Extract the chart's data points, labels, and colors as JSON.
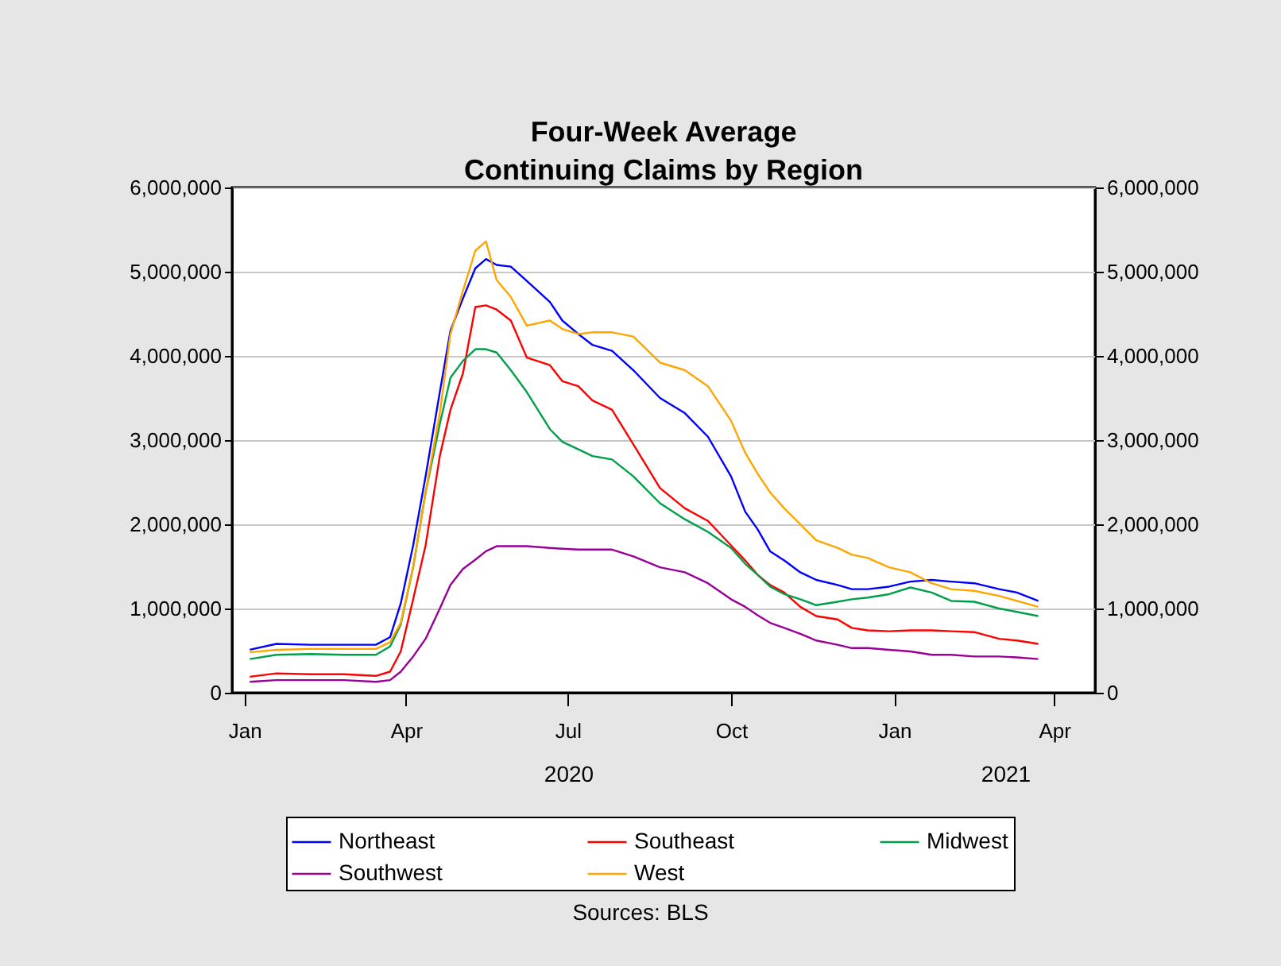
{
  "chart_data": {
    "type": "line",
    "title": "Four-Week Average\nContinuing Claims by Region",
    "annotations": [
      "2020",
      "2021",
      "Sources: BLS"
    ],
    "x": [
      "2020-01-04",
      "2020-01-19",
      "2020-02-07",
      "2020-02-26",
      "2020-03-15",
      "2020-03-23",
      "2020-03-29",
      "2020-04-05",
      "2020-04-12",
      "2020-04-20",
      "2020-04-26",
      "2020-05-03",
      "2020-05-10",
      "2020-05-16",
      "2020-05-22",
      "2020-05-30",
      "2020-06-08",
      "2020-06-21",
      "2020-06-28",
      "2020-07-07",
      "2020-07-15",
      "2020-07-26",
      "2020-08-07",
      "2020-08-22",
      "2020-09-05",
      "2020-09-18",
      "2020-10-01",
      "2020-10-09",
      "2020-10-16",
      "2020-10-23",
      "2020-10-31",
      "2020-11-09",
      "2020-11-18",
      "2020-11-30",
      "2020-12-08",
      "2020-12-17",
      "2020-12-29",
      "2021-01-10",
      "2021-01-22",
      "2021-02-02",
      "2021-02-15",
      "2021-03-01",
      "2021-03-11",
      "2021-03-23"
    ],
    "series": [
      {
        "name": "Northeast",
        "color": "#0000ff",
        "values": [
          510000,
          580000,
          570000,
          570000,
          570000,
          660000,
          1060000,
          1750000,
          2570000,
          3570000,
          4300000,
          4680000,
          5040000,
          5150000,
          5080000,
          5060000,
          4890000,
          4640000,
          4420000,
          4260000,
          4130000,
          4060000,
          3830000,
          3500000,
          3320000,
          3040000,
          2570000,
          2150000,
          1940000,
          1680000,
          1570000,
          1430000,
          1340000,
          1280000,
          1230000,
          1230000,
          1260000,
          1320000,
          1340000,
          1320000,
          1300000,
          1230000,
          1190000,
          1090000
        ]
      },
      {
        "name": "Southeast",
        "color": "#ff0000",
        "values": [
          190000,
          230000,
          220000,
          220000,
          200000,
          250000,
          490000,
          1110000,
          1750000,
          2810000,
          3360000,
          3790000,
          4580000,
          4600000,
          4550000,
          4420000,
          3980000,
          3890000,
          3700000,
          3640000,
          3470000,
          3360000,
          2950000,
          2430000,
          2190000,
          2040000,
          1750000,
          1570000,
          1400000,
          1280000,
          1190000,
          1020000,
          910000,
          870000,
          770000,
          740000,
          730000,
          740000,
          740000,
          730000,
          720000,
          640000,
          620000,
          580000
        ]
      },
      {
        "name": "Midwest",
        "color": "#00a04a",
        "values": [
          400000,
          450000,
          460000,
          450000,
          450000,
          550000,
          810000,
          1490000,
          2380000,
          3190000,
          3740000,
          3940000,
          4080000,
          4080000,
          4040000,
          3830000,
          3570000,
          3130000,
          2980000,
          2890000,
          2810000,
          2770000,
          2570000,
          2250000,
          2060000,
          1910000,
          1720000,
          1530000,
          1400000,
          1260000,
          1170000,
          1110000,
          1040000,
          1080000,
          1110000,
          1130000,
          1170000,
          1250000,
          1190000,
          1090000,
          1080000,
          1000000,
          960000,
          910000
        ]
      },
      {
        "name": "Southwest",
        "color": "#990099",
        "values": [
          130000,
          150000,
          150000,
          150000,
          130000,
          150000,
          250000,
          430000,
          640000,
          1000000,
          1280000,
          1470000,
          1580000,
          1680000,
          1740000,
          1740000,
          1740000,
          1720000,
          1710000,
          1700000,
          1700000,
          1700000,
          1620000,
          1490000,
          1430000,
          1300000,
          1110000,
          1020000,
          920000,
          830000,
          770000,
          700000,
          620000,
          570000,
          530000,
          530000,
          510000,
          490000,
          450000,
          450000,
          430000,
          430000,
          420000,
          400000
        ]
      },
      {
        "name": "West",
        "color": "#ffa500",
        "values": [
          480000,
          510000,
          520000,
          520000,
          520000,
          600000,
          830000,
          1490000,
          2380000,
          3320000,
          4260000,
          4770000,
          5250000,
          5360000,
          4900000,
          4700000,
          4360000,
          4420000,
          4320000,
          4260000,
          4280000,
          4280000,
          4230000,
          3920000,
          3830000,
          3640000,
          3230000,
          2850000,
          2600000,
          2380000,
          2190000,
          2000000,
          1810000,
          1720000,
          1640000,
          1600000,
          1490000,
          1430000,
          1300000,
          1230000,
          1210000,
          1150000,
          1090000,
          1020000
        ]
      }
    ],
    "xlim": [
      "2019-12-25",
      "2021-04-24"
    ],
    "xticks": [
      {
        "value": "2020-01-01",
        "label": "Jan"
      },
      {
        "value": "2020-04-01",
        "label": "Apr"
      },
      {
        "value": "2020-07-01",
        "label": "Jul"
      },
      {
        "value": "2020-10-01",
        "label": "Oct"
      },
      {
        "value": "2021-01-01",
        "label": "Jan"
      },
      {
        "value": "2021-04-01",
        "label": "Apr"
      }
    ],
    "ylim": [
      0,
      6000000
    ],
    "yticks": [
      0,
      {
        "value": 1000000,
        "label": "1,000,000"
      },
      {
        "value": 2000000,
        "label": "2,000,000"
      },
      {
        "value": 3000000,
        "label": "3,000,000"
      },
      {
        "value": 4000000,
        "label": "4,000,000"
      },
      {
        "value": 5000000,
        "label": "5,000,000"
      },
      {
        "value": 6000000,
        "label": "6,000,000"
      }
    ],
    "y2lim": [
      0,
      6000000
    ],
    "y2ticks": [
      0,
      {
        "value": 1000000,
        "label": "1,000,000"
      },
      {
        "value": 2000000,
        "label": "2,000,000"
      },
      {
        "value": 3000000,
        "label": "3,000,000"
      },
      {
        "value": 4000000,
        "label": "4,000,000"
      },
      {
        "value": 5000000,
        "label": "5,000,000"
      },
      {
        "value": 6000000,
        "label": "6,000,000"
      }
    ],
    "grid": "y",
    "legend": "bottom"
  }
}
